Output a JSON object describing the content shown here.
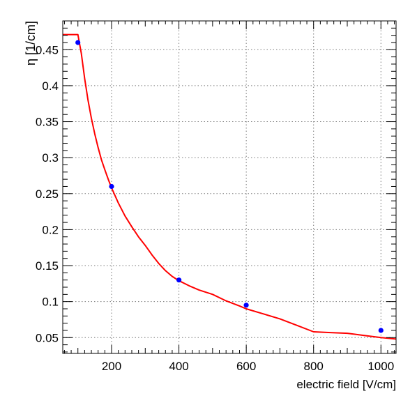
{
  "chart_data": {
    "type": "scatter",
    "title": "",
    "xlabel": "electric field [V/cm]",
    "ylabel": "η [1/cm]",
    "xlim": [
      55,
      1045
    ],
    "ylim": [
      0.028,
      0.49
    ],
    "x_ticks": [
      {
        "value": 200,
        "label": "200"
      },
      {
        "value": 400,
        "label": "400"
      },
      {
        "value": 600,
        "label": "600"
      },
      {
        "value": 800,
        "label": "800"
      },
      {
        "value": 1000,
        "label": "1000"
      }
    ],
    "y_ticks": [
      {
        "value": 0.05,
        "label": "0.05"
      },
      {
        "value": 0.1,
        "label": "0.1"
      },
      {
        "value": 0.15,
        "label": "0.15"
      },
      {
        "value": 0.2,
        "label": "0.2"
      },
      {
        "value": 0.25,
        "label": "0.25"
      },
      {
        "value": 0.3,
        "label": "0.3"
      },
      {
        "value": 0.35,
        "label": "0.35"
      },
      {
        "value": 0.4,
        "label": "0.4"
      },
      {
        "value": 0.45,
        "label": "0.45"
      }
    ],
    "grid": true,
    "series": [
      {
        "type": "scatter",
        "color": "#0000ff",
        "x": [
          100,
          200,
          400,
          600,
          1000
        ],
        "y": [
          0.46,
          0.26,
          0.13,
          0.095,
          0.06
        ]
      },
      {
        "type": "line",
        "color": "#ff0000",
        "x": [
          55,
          100,
          110,
          120,
          130,
          140,
          150,
          160,
          170,
          180,
          190,
          200,
          220,
          240,
          260,
          280,
          300,
          320,
          340,
          360,
          380,
          400,
          430,
          460,
          500,
          540,
          580,
          600,
          650,
          700,
          750,
          800,
          850,
          900,
          950,
          1000,
          1045
        ],
        "y": [
          0.471,
          0.471,
          0.445,
          0.41,
          0.38,
          0.355,
          0.333,
          0.314,
          0.297,
          0.283,
          0.27,
          0.258,
          0.237,
          0.219,
          0.204,
          0.19,
          0.178,
          0.165,
          0.153,
          0.143,
          0.135,
          0.129,
          0.122,
          0.116,
          0.11,
          0.101,
          0.094,
          0.09,
          0.083,
          0.076,
          0.067,
          0.058,
          0.057,
          0.056,
          0.053,
          0.05,
          0.048
        ]
      }
    ]
  }
}
